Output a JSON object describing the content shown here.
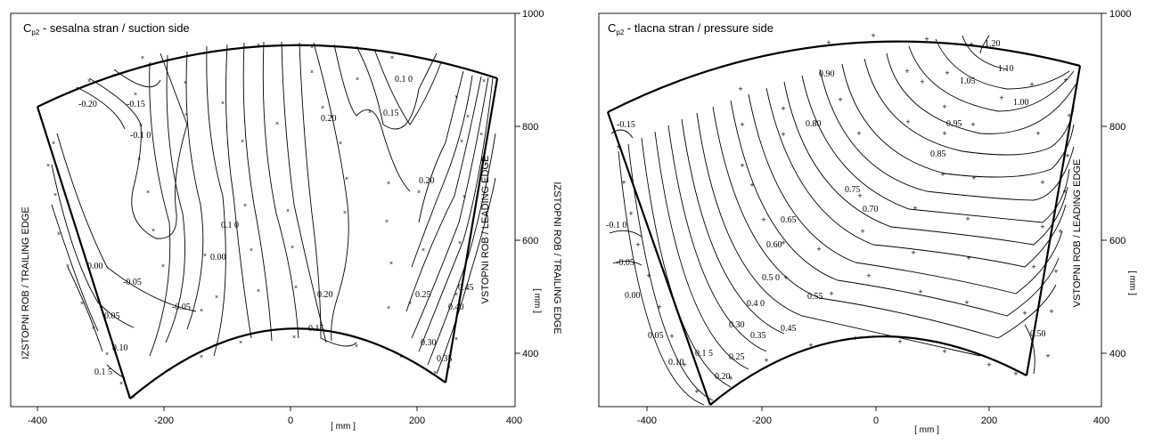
{
  "chart_data": [
    {
      "type": "contour",
      "title": "C_p2 - sesalna stran / suction side",
      "title_main": "C",
      "title_sub": "p2",
      "title_rest": " - sesalna stran / suction side",
      "xlabel": "[ mm ]",
      "ylabel": "[ mm ]",
      "xlim": [
        -460,
        410
      ],
      "ylim": [
        290,
        1000
      ],
      "xticks": [
        "-400",
        "-200",
        "0",
        "200",
        "400"
      ],
      "yticks": [
        "400",
        "600",
        "800",
        "1000"
      ],
      "left_edge_label": "IZSTOPNI ROB / TRAILING  EDGE",
      "right_edge_label": "VSTOPNI ROB / LEADING  EDGE",
      "contour_labels": [
        "-0.20",
        "-0.15",
        "-0.1 0",
        "0.00",
        "-0.05",
        "-0.05",
        "0.05",
        "0.10",
        "0.1 5",
        "0.00",
        "0.1 0",
        "0.20",
        "0.15",
        "0.20",
        "0.15",
        "0.1 0",
        "0.20",
        "0.25",
        "0.30",
        "0.35",
        "0.40",
        "0.45"
      ],
      "markers": "x",
      "grid": false
    },
    {
      "type": "contour",
      "title": "C_p2 - tlacna stran / pressure side",
      "title_main": "C",
      "title_sub": "p2",
      "title_rest": " - tlacna stran / pressure side",
      "xlabel": "[ mm ]",
      "ylabel": "[ mm ]",
      "xlim": [
        -470,
        410
      ],
      "ylim": [
        290,
        1000
      ],
      "xticks": [
        "-400",
        "-200",
        "0",
        "200",
        "400"
      ],
      "yticks": [
        "400",
        "600",
        "800",
        "1000"
      ],
      "right_edge_label": "VSTOPNI ROB / LEADING  EDGE",
      "contour_labels": [
        "1.20",
        "1.10",
        "1.05",
        "1.00",
        "0.90",
        "0.95",
        "0.80",
        "0.85",
        "0.75",
        "0.70",
        "0.65",
        "0.60",
        "-0.15",
        "-0.1 0",
        "-0.05",
        "0.00",
        "0.05",
        "0.10",
        "0.1 5",
        "0.20",
        "0.25",
        "0.30",
        "0.35",
        "0.4 0",
        "0.45",
        "0.5 0",
        "0.55",
        "0.50"
      ],
      "markers": "+",
      "grid": false
    }
  ]
}
